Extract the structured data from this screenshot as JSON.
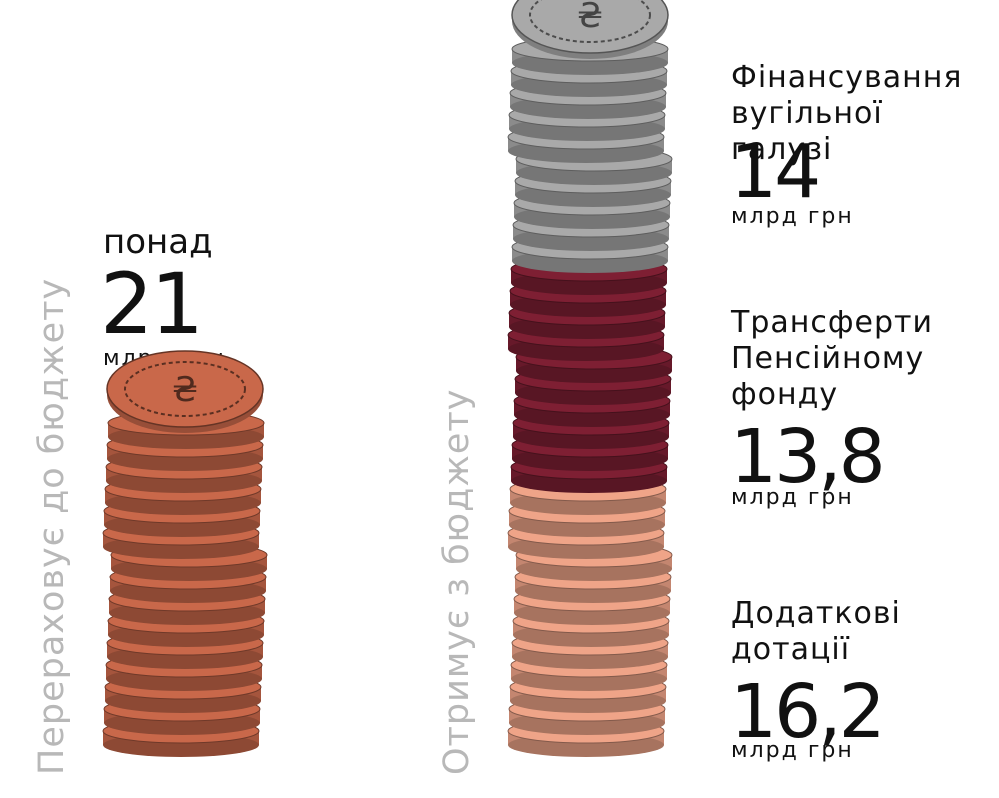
{
  "left": {
    "axis_label": "Перераховує до бюджету",
    "prefix": "понад",
    "value": "21",
    "unit": "млрд грн"
  },
  "right": {
    "axis_label": "Отримує з бюджету",
    "segments": [
      {
        "title": "Фінансування вугільної галузі",
        "value": "14",
        "unit": "млрд грн"
      },
      {
        "title": "Трансферти Пенсійному фонду",
        "value": "13,8",
        "unit": "млрд грн"
      },
      {
        "title": "Додаткові дотації",
        "value": "16,2",
        "unit": "млрд грн"
      }
    ]
  },
  "colors": {
    "left_stack": "#c9684a",
    "coal": "#a9a9a9",
    "pension": "#7e1f33",
    "subsidies": "#efa488",
    "axis_label": "#b8b8b8"
  },
  "chart_data": {
    "type": "bar",
    "categories": [
      "Перераховує до бюджету",
      "Отримує з бюджету"
    ],
    "series": [
      {
        "name": "Фінансування вугільної галузі",
        "values": [
          0,
          14
        ]
      },
      {
        "name": "Трансферти Пенсійному фонду",
        "values": [
          0,
          13.8
        ]
      },
      {
        "name": "Додаткові дотації",
        "values": [
          0,
          16.2
        ]
      },
      {
        "name": "понад",
        "values": [
          21,
          0
        ]
      }
    ],
    "stacked": true,
    "unit": "млрд грн"
  }
}
